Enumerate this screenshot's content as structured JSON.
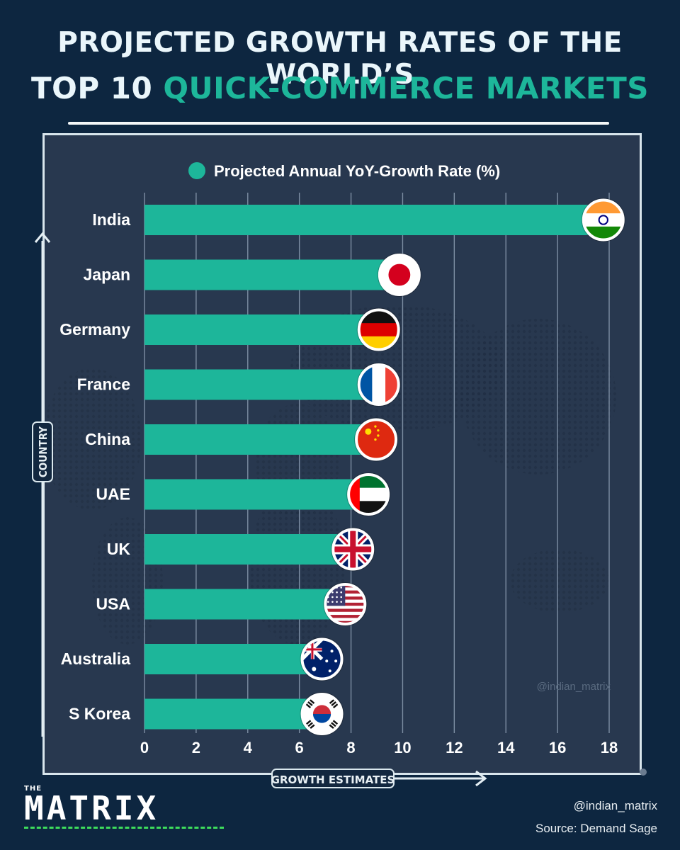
{
  "header": {
    "title_line1": "PROJECTED GROWTH RATES OF THE WORLD’S",
    "title_line2_prefix": "TOP 10",
    "title_line2_highlight": "QUICK-COMMERCE MARKETS"
  },
  "axis_badges": {
    "y": "COUNTRY",
    "x": "GROWTH ESTIMATES"
  },
  "watermark": "@indian_matrix",
  "footer": {
    "handle": "@indian_matrix",
    "source": "Source: Demand Sage"
  },
  "logo": {
    "small": "THE",
    "main": "MATRIX"
  },
  "colors": {
    "background": "#0d2640",
    "panel": "#28384f",
    "bar": "#1db69a",
    "title_highlight": "#1db69a"
  },
  "chart_data": {
    "type": "bar",
    "orientation": "horizontal",
    "legend": "Projected Annual YoY-Growth Rate (%)",
    "legend_placement": "top-center",
    "categories": [
      "India",
      "Japan",
      "Germany",
      "France",
      "China",
      "UAE",
      "UK",
      "USA",
      "Australia",
      "S Korea"
    ],
    "values": [
      17.5,
      9.6,
      8.8,
      8.8,
      8.7,
      8.4,
      7.8,
      7.5,
      6.6,
      6.6
    ],
    "flags": [
      "india-flag",
      "japan-flag",
      "germany-flag",
      "france-flag",
      "china-flag",
      "uae-flag",
      "uk-flag",
      "usa-flag",
      "australia-flag",
      "south-korea-flag"
    ],
    "xlim": [
      0,
      18
    ],
    "xticks": [
      0,
      2,
      4,
      6,
      8,
      10,
      12,
      14,
      16,
      18
    ],
    "grid": true
  }
}
